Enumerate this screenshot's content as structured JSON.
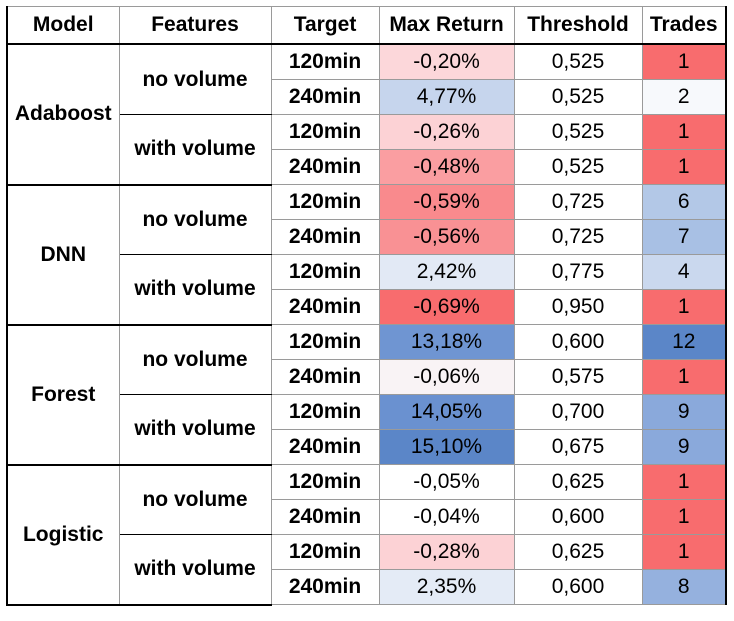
{
  "headers": [
    "Model",
    "Features",
    "Target",
    "Max Return",
    "Threshold",
    "Trades"
  ],
  "colors": {
    "red_strong": "#f86c6e",
    "red_mid": "#fa9699",
    "red_light": "#fde1e3",
    "white": "#ffffff",
    "blue_light": "#e6ecf6",
    "blue_soft": "#c8d6ed",
    "blue_mid": "#a8c0e4",
    "blue_strong": "#6f95d2",
    "blue_deep": "#5b86c8"
  },
  "rows": [
    {
      "model": "Adaboost",
      "features": "no volume",
      "target": "120min",
      "max_return": "-0,20%",
      "threshold": "0,525",
      "trades": "1",
      "mr_color": "#fcd7da",
      "tr_color": "#f86c6e"
    },
    {
      "model": "Adaboost",
      "features": "no volume",
      "target": "240min",
      "max_return": "4,77%",
      "threshold": "0,525",
      "trades": "2",
      "mr_color": "#c6d5ed",
      "tr_color": "#f7f9fc"
    },
    {
      "model": "Adaboost",
      "features": "with volume",
      "target": "120min",
      "max_return": "-0,26%",
      "threshold": "0,525",
      "trades": "1",
      "mr_color": "#fcd2d5",
      "tr_color": "#f86c6e"
    },
    {
      "model": "Adaboost",
      "features": "with volume",
      "target": "240min",
      "max_return": "-0,48%",
      "threshold": "0,525",
      "trades": "1",
      "mr_color": "#fa9ea1",
      "tr_color": "#f86c6e"
    },
    {
      "model": "DNN",
      "features": "no volume",
      "target": "120min",
      "max_return": "-0,59%",
      "threshold": "0,725",
      "trades": "6",
      "mr_color": "#f98a8d",
      "tr_color": "#b3c8e7"
    },
    {
      "model": "DNN",
      "features": "no volume",
      "target": "240min",
      "max_return": "-0,56%",
      "threshold": "0,725",
      "trades": "7",
      "mr_color": "#f99194",
      "tr_color": "#a8c0e4"
    },
    {
      "model": "DNN",
      "features": "with volume",
      "target": "120min",
      "max_return": "2,42%",
      "threshold": "0,775",
      "trades": "4",
      "mr_color": "#e2e9f5",
      "tr_color": "#cad8ee"
    },
    {
      "model": "DNN",
      "features": "with volume",
      "target": "240min",
      "max_return": "-0,69%",
      "threshold": "0,950",
      "trades": "1",
      "mr_color": "#f86c6e",
      "tr_color": "#f86c6e"
    },
    {
      "model": "Forest",
      "features": "no volume",
      "target": "120min",
      "max_return": "13,18%",
      "threshold": "0,600",
      "trades": "12",
      "mr_color": "#6f95d2",
      "tr_color": "#5b86c8"
    },
    {
      "model": "Forest",
      "features": "no volume",
      "target": "240min",
      "max_return": "-0,06%",
      "threshold": "0,575",
      "trades": "1",
      "mr_color": "#f9f3f5",
      "tr_color": "#f86c6e"
    },
    {
      "model": "Forest",
      "features": "with volume",
      "target": "120min",
      "max_return": "14,05%",
      "threshold": "0,700",
      "trades": "9",
      "mr_color": "#6a91d0",
      "tr_color": "#8aa9db"
    },
    {
      "model": "Forest",
      "features": "with volume",
      "target": "240min",
      "max_return": "15,10%",
      "threshold": "0,675",
      "trades": "9",
      "mr_color": "#5b86c8",
      "tr_color": "#8aa9db"
    },
    {
      "model": "Logistic",
      "features": "no volume",
      "target": "120min",
      "max_return": "-0,05%",
      "threshold": "0,625",
      "trades": "1",
      "mr_color": "#ffffff",
      "tr_color": "#f86c6e"
    },
    {
      "model": "Logistic",
      "features": "no volume",
      "target": "240min",
      "max_return": "-0,04%",
      "threshold": "0,600",
      "trades": "1",
      "mr_color": "#ffffff",
      "tr_color": "#f86c6e"
    },
    {
      "model": "Logistic",
      "features": "with volume",
      "target": "120min",
      "max_return": "-0,28%",
      "threshold": "0,625",
      "trades": "1",
      "mr_color": "#fcd2d5",
      "tr_color": "#f86c6e"
    },
    {
      "model": "Logistic",
      "features": "with volume",
      "target": "240min",
      "max_return": "2,35%",
      "threshold": "0,600",
      "trades": "8",
      "mr_color": "#e4ebf6",
      "tr_color": "#95b1de"
    }
  ]
}
